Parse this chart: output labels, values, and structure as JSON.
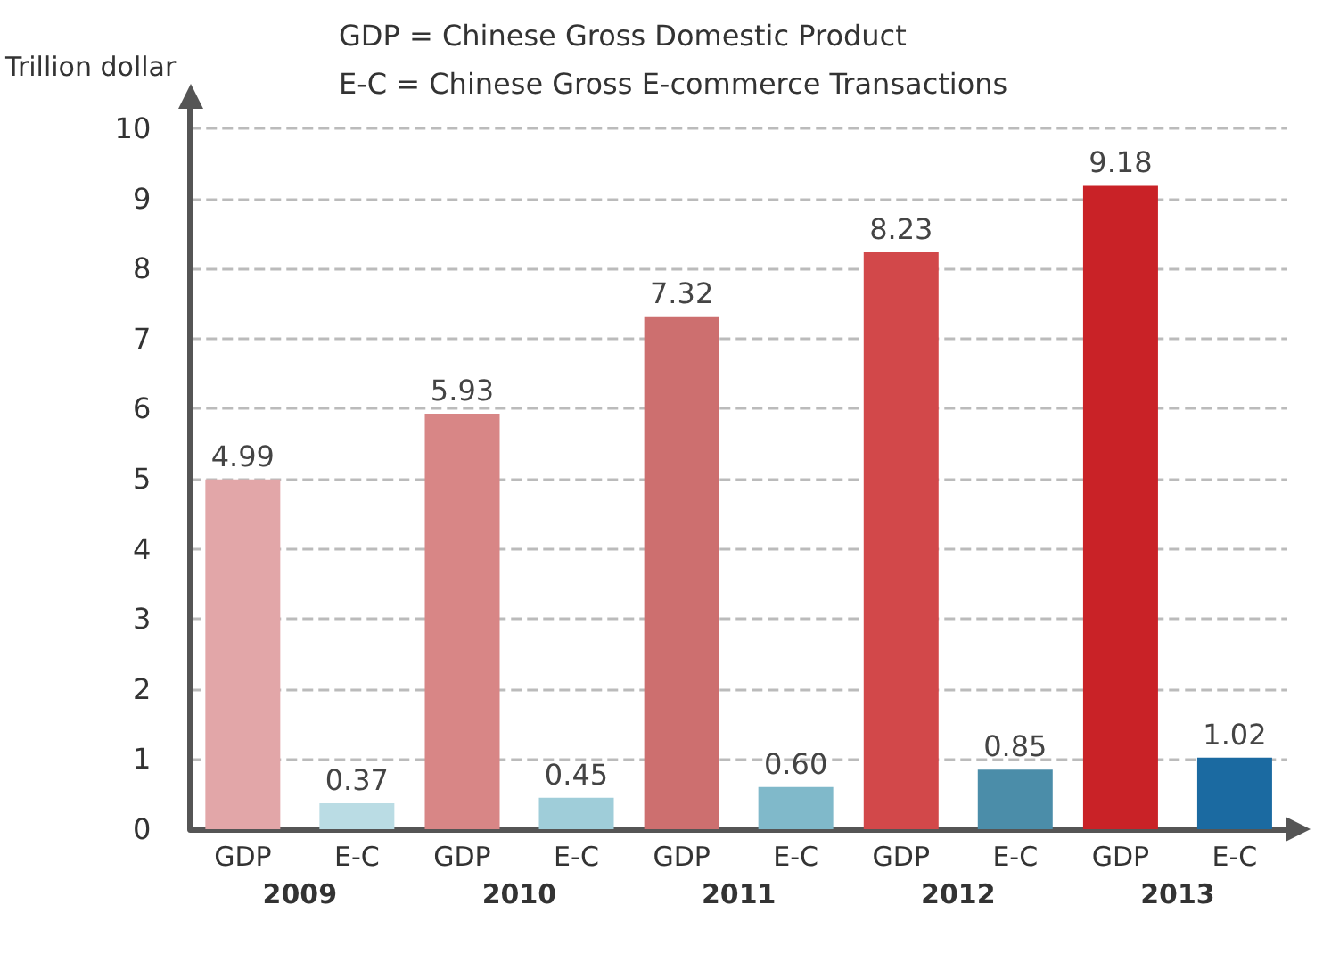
{
  "chart_data": {
    "type": "bar",
    "annotations": [
      "GDP = Chinese Gross Domestic Product",
      "E-C = Chinese Gross E-commerce Transactions"
    ],
    "ylabel": "Trillion dollar",
    "categories": [
      "2009",
      "2010",
      "2011",
      "2012",
      "2013"
    ],
    "series": [
      {
        "name": "GDP",
        "values": [
          4.99,
          5.93,
          7.32,
          8.23,
          9.18
        ],
        "colors": [
          "#e2a6a8",
          "#d88686",
          "#cd6f6f",
          "#d2484a",
          "#c92227"
        ],
        "value_labels": [
          "4.99",
          "5.93",
          "7.32",
          "8.23",
          "9.18"
        ]
      },
      {
        "name": "E-C",
        "values": [
          0.37,
          0.45,
          0.6,
          0.85,
          1.02
        ],
        "colors": [
          "#badce4",
          "#9fcdd9",
          "#80b9ca",
          "#4b8da9",
          "#1b6aa1"
        ],
        "value_labels": [
          "0.37",
          "0.45",
          "0.60",
          "0.85",
          "1.02"
        ]
      }
    ],
    "ylim": [
      0,
      10
    ],
    "yticks": [
      0,
      1,
      2,
      3,
      4,
      5,
      6,
      7,
      8,
      9,
      10
    ],
    "grid": "y",
    "legend": false
  }
}
